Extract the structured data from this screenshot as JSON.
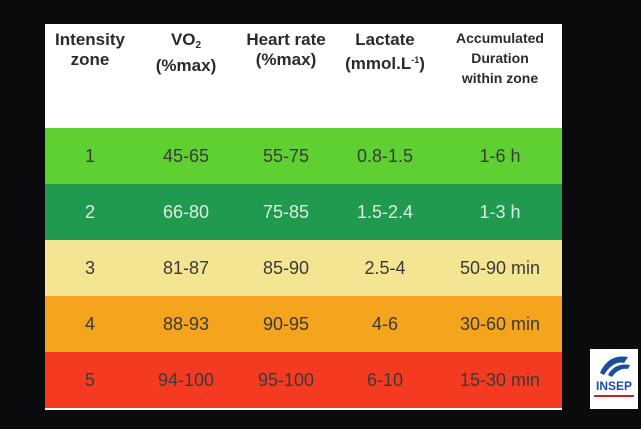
{
  "table": {
    "headers": [
      {
        "lines": [
          "Intensity",
          "zone"
        ]
      },
      {
        "lines": [
          "VO",
          "(%max)"
        ],
        "subscript": "2"
      },
      {
        "lines": [
          "Heart rate",
          "(%max)"
        ]
      },
      {
        "lines": [
          "Lactate",
          "(mmol.L"
        ],
        "superscript": "-1",
        "suffix": ")"
      },
      {
        "lines": [
          "Accumulated",
          "Duration",
          "within zone"
        ]
      }
    ],
    "rows": [
      {
        "zone": "1",
        "vo2": "45-65",
        "hr": "55-75",
        "lactate": "0.8-1.5",
        "duration": "1-6 h",
        "color": "#5ed032"
      },
      {
        "zone": "2",
        "vo2": "66-80",
        "hr": "75-85",
        "lactate": "1.5-2.4",
        "duration": "1-3 h",
        "color": "#1f9a4f"
      },
      {
        "zone": "3",
        "vo2": "81-87",
        "hr": "85-90",
        "lactate": "2.5-4",
        "duration": "50-90 min",
        "color": "#f3e592"
      },
      {
        "zone": "4",
        "vo2": "88-93",
        "hr": "90-95",
        "lactate": "4-6",
        "duration": "30-60 min",
        "color": "#f4a41d"
      },
      {
        "zone": "5",
        "vo2": "94-100",
        "hr": "95-100",
        "lactate": "6-10",
        "duration": "15-30 min",
        "color": "#f53a22"
      }
    ]
  },
  "logo": {
    "text": "INSEP"
  }
}
